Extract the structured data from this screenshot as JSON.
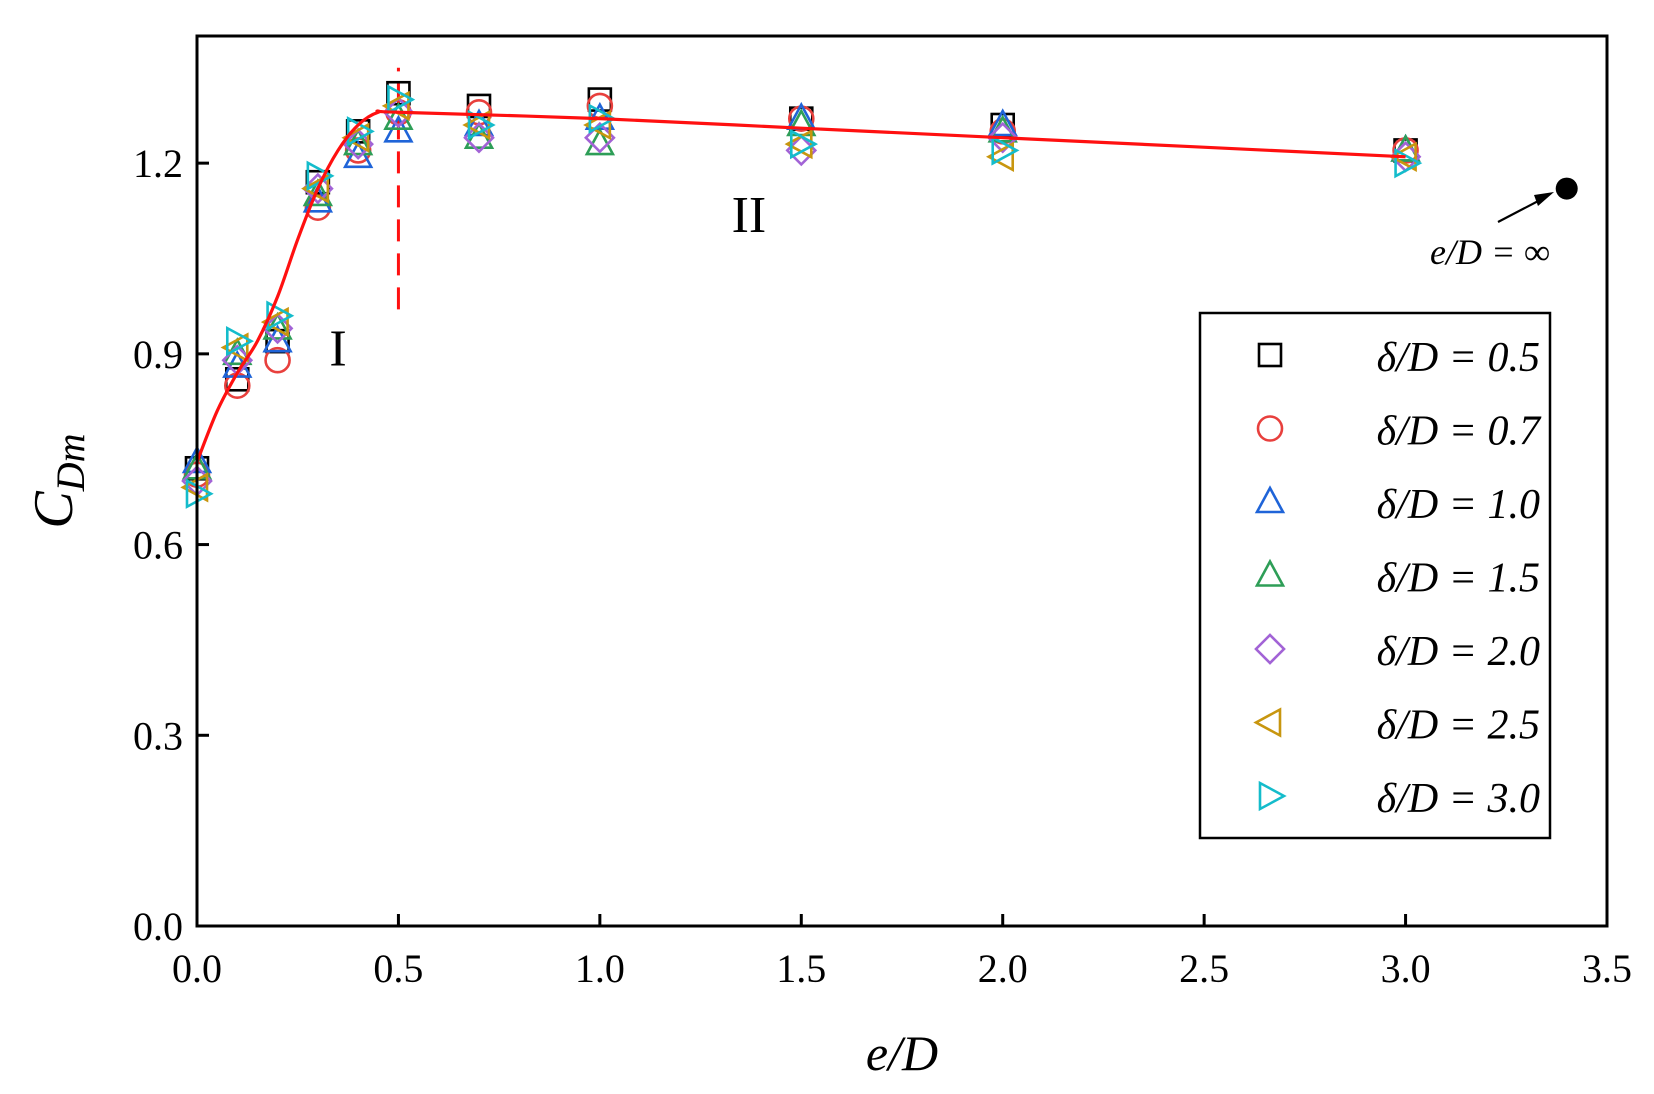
{
  "chart_data": {
    "type": "scatter",
    "title": "",
    "xlabel": "e/D",
    "ylabel": {
      "main": "C",
      "sub": "Dm"
    },
    "xlim": [
      0.0,
      3.5
    ],
    "ylim": [
      0.0,
      1.4
    ],
    "xticks": [
      0.0,
      0.5,
      1.0,
      1.5,
      2.0,
      2.5,
      3.0,
      3.5
    ],
    "yticks": [
      0.0,
      0.3,
      0.6,
      0.9,
      1.2
    ],
    "xtick_labels": [
      "0.0",
      "0.5",
      "1.0",
      "1.5",
      "2.0",
      "2.5",
      "3.0",
      "3.5"
    ],
    "ytick_labels": [
      "0.0",
      "0.3",
      "0.6",
      "0.9",
      "1.2"
    ],
    "grid": false,
    "legend_position": "right",
    "x": [
      0.0,
      0.1,
      0.2,
      0.3,
      0.4,
      0.5,
      0.7,
      1.0,
      1.5,
      2.0,
      3.0
    ],
    "series": [
      {
        "name": "δ/D = 0.5",
        "marker": "square",
        "color": "#000000",
        "values": [
          0.72,
          0.86,
          0.92,
          1.17,
          1.25,
          1.31,
          1.29,
          1.3,
          1.27,
          1.26,
          1.22
        ]
      },
      {
        "name": "δ/D = 0.7",
        "marker": "circle",
        "color": "#e8403d",
        "values": [
          0.71,
          0.85,
          0.89,
          1.13,
          1.22,
          1.28,
          1.28,
          1.29,
          1.27,
          1.25,
          1.22
        ]
      },
      {
        "name": "δ/D = 1.0",
        "marker": "triangle-up",
        "color": "#1f64d8",
        "values": [
          0.73,
          0.88,
          0.92,
          1.14,
          1.21,
          1.25,
          1.26,
          1.27,
          1.27,
          1.26,
          1.22
        ]
      },
      {
        "name": "δ/D = 1.5",
        "marker": "triangle-up",
        "color": "#2e9e57",
        "values": [
          0.72,
          0.9,
          0.94,
          1.15,
          1.23,
          1.27,
          1.24,
          1.23,
          1.26,
          1.25,
          1.22
        ]
      },
      {
        "name": "δ/D = 2.0",
        "marker": "diamond",
        "color": "#a263d6",
        "values": [
          0.7,
          0.89,
          0.94,
          1.16,
          1.23,
          1.28,
          1.24,
          1.24,
          1.22,
          1.24,
          1.21
        ]
      },
      {
        "name": "δ/D = 2.5",
        "marker": "triangle-left",
        "color": "#c8960f",
        "values": [
          0.69,
          0.91,
          0.95,
          1.16,
          1.24,
          1.29,
          1.26,
          1.26,
          1.23,
          1.21,
          1.21
        ]
      },
      {
        "name": "δ/D = 3.0",
        "marker": "triangle-right",
        "color": "#14bccb",
        "values": [
          0.68,
          0.92,
          0.96,
          1.18,
          1.25,
          1.3,
          1.26,
          1.27,
          1.23,
          1.22,
          1.2
        ]
      }
    ],
    "fit_curve": {
      "color": "#ff1010",
      "x": [
        0.0,
        0.05,
        0.1,
        0.15,
        0.2,
        0.25,
        0.3,
        0.35,
        0.4,
        0.45,
        0.5,
        1.0,
        1.5,
        2.0,
        3.0
      ],
      "y": [
        0.73,
        0.81,
        0.87,
        0.92,
        0.99,
        1.08,
        1.16,
        1.22,
        1.26,
        1.28,
        1.28,
        1.27,
        1.255,
        1.24,
        1.21
      ]
    },
    "divider": {
      "x": 0.5,
      "y_range": [
        0.97,
        1.35
      ],
      "color": "#ff1010",
      "style": "dashed"
    },
    "special_point": {
      "x": 3.4,
      "y": 1.16,
      "label": "e/D = ∞",
      "color": "#000000"
    },
    "annotations": [
      {
        "text": "I",
        "x": 0.35,
        "y": 0.91
      },
      {
        "text": "II",
        "x": 1.37,
        "y": 1.12
      }
    ]
  }
}
